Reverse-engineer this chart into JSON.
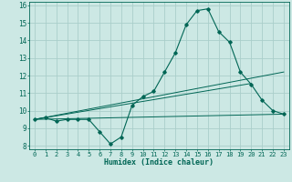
{
  "xlabel": "Humidex (Indice chaleur)",
  "ylabel": "",
  "bg_color": "#cce8e4",
  "grid_color": "#aaceca",
  "line_color": "#006655",
  "xlim": [
    -0.5,
    23.5
  ],
  "ylim": [
    7.8,
    16.2
  ],
  "xticks": [
    0,
    1,
    2,
    3,
    4,
    5,
    6,
    7,
    8,
    9,
    10,
    11,
    12,
    13,
    14,
    15,
    16,
    17,
    18,
    19,
    20,
    21,
    22,
    23
  ],
  "yticks": [
    8,
    9,
    10,
    11,
    12,
    13,
    14,
    15,
    16
  ],
  "line1_x": [
    0,
    1,
    2,
    3,
    4,
    5,
    6,
    7,
    8,
    9,
    10,
    11,
    12,
    13,
    14,
    15,
    16,
    17,
    18,
    19,
    20,
    21,
    22,
    23
  ],
  "line1_y": [
    9.5,
    9.6,
    9.4,
    9.5,
    9.5,
    9.5,
    8.8,
    8.1,
    8.5,
    10.3,
    10.8,
    11.1,
    12.2,
    13.3,
    14.9,
    15.7,
    15.8,
    14.5,
    13.9,
    12.2,
    11.5,
    10.6,
    10.0,
    9.8
  ],
  "line2_x": [
    0,
    23
  ],
  "line2_y": [
    9.5,
    9.8
  ],
  "line3_x": [
    0,
    20
  ],
  "line3_y": [
    9.5,
    11.55
  ],
  "line4_x": [
    0,
    23
  ],
  "line4_y": [
    9.5,
    12.2
  ],
  "xlabel_fontsize": 6.0,
  "tick_fontsize": 5.0,
  "ytick_fontsize": 5.5
}
